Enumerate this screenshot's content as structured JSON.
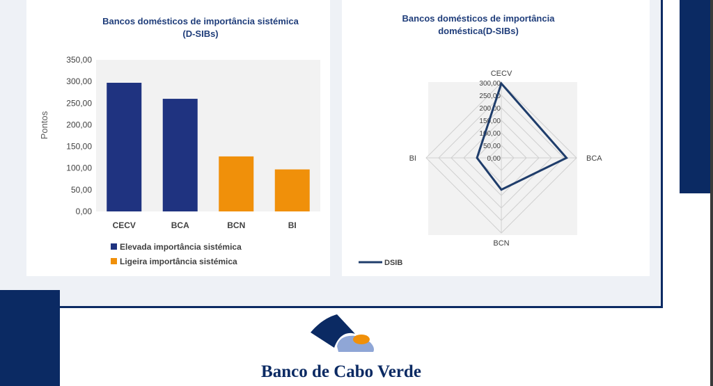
{
  "colors": {
    "navy": "#0b2a63",
    "dark_series": "#1f3380",
    "orange": "#f0900a",
    "plot_bg": "#f2f2f2",
    "title": "#1f3d7a"
  },
  "bar_chart": {
    "title_line1": "Bancos domésticos de importância sistémica",
    "title_line2": "(D-SIBs)",
    "ylabel": "Pontos",
    "legend": [
      {
        "label": "Elevada importância sistémica",
        "color": "#1f3380"
      },
      {
        "label": "Ligeira importância sistémica",
        "color": "#f0900a"
      }
    ]
  },
  "radar_chart": {
    "title_line1": "Bancos domésticos de importância",
    "title_line2": "doméstica(D-SIBs)",
    "legend_label": "DSIB"
  },
  "chart_data": [
    {
      "type": "bar",
      "title": "Bancos domésticos de importância sistémica (D-SIBs)",
      "ylabel": "Pontos",
      "xlabel": "",
      "categories": [
        "CECV",
        "BCA",
        "BCN",
        "BI"
      ],
      "values": [
        297,
        260,
        127,
        97
      ],
      "colors": [
        "#1f3380",
        "#1f3380",
        "#f0900a",
        "#f0900a"
      ],
      "ylim": [
        0,
        350
      ],
      "yticks": [
        "0,00",
        "50,00",
        "100,00",
        "150,00",
        "200,00",
        "250,00",
        "300,00",
        "350,00"
      ],
      "grid": false,
      "legend_position": "bottom"
    },
    {
      "type": "radar",
      "title": "Bancos domésticos de importância doméstica(D-SIBs)",
      "categories": [
        "CECV",
        "BCA",
        "BCN",
        "BI"
      ],
      "series": [
        {
          "name": "DSIB",
          "values": [
            297,
            260,
            127,
            97
          ]
        }
      ],
      "rlim": [
        0,
        300
      ],
      "rticks": [
        "0,00",
        "50,00",
        "100,00",
        "150,00",
        "200,00",
        "250,00",
        "300,00"
      ],
      "legend_position": "bottom-left"
    }
  ],
  "footer": {
    "bank_name": "Banco de Cabo Verde"
  }
}
